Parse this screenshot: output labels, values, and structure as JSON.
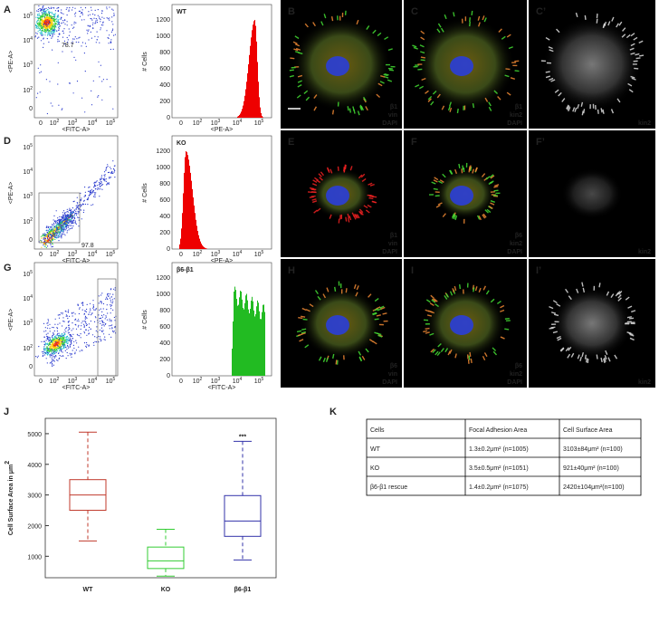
{
  "flow_rows": [
    {
      "dot": {
        "label": "A",
        "gate": "78.7"
      },
      "hist": {
        "name": "WT",
        "x_label": "<PE-A>"
      }
    },
    {
      "dot": {
        "label": "D",
        "gate": "97.8"
      },
      "hist": {
        "name": "KO",
        "x_label": "<PE-A>"
      }
    },
    {
      "dot": {
        "label": "G"
      },
      "hist": {
        "name": "β6-β1",
        "x_label": "<FITC-A>"
      }
    }
  ],
  "axes": {
    "x_label": "<FITC-A>",
    "y_label": "<PE-A>",
    "hist_y_label": "# Cells",
    "log_ticks": [
      {
        "label": "0"
      },
      {
        "label": "10",
        "sup": "2"
      },
      {
        "label": "10",
        "sup": "3"
      },
      {
        "label": "10",
        "sup": "4"
      },
      {
        "label": "10",
        "sup": "5"
      }
    ],
    "hist_yticks": [
      "0",
      "200",
      "400",
      "600",
      "800",
      "1000",
      "1200"
    ]
  },
  "micro": [
    {
      "label": "B",
      "channels": [
        {
          "text": "β1",
          "color": "#3c3"
        },
        {
          "text": "vin",
          "color": "#e22"
        },
        {
          "text": "DAPI",
          "color": "#36f"
        }
      ]
    },
    {
      "label": "C",
      "channels": [
        {
          "text": "β1",
          "color": "#3c3"
        },
        {
          "text": "kin2",
          "color": "#e22"
        },
        {
          "text": "DAPI",
          "color": "#36f"
        }
      ]
    },
    {
      "label": "C’",
      "channels": [
        {
          "text": "kin2",
          "color": "#fff"
        }
      ]
    },
    {
      "label": "E",
      "channels": [
        {
          "text": "β1",
          "color": "#3c3"
        },
        {
          "text": "vin",
          "color": "#e22"
        },
        {
          "text": "DAPI",
          "color": "#36f"
        }
      ]
    },
    {
      "label": "F",
      "channels": [
        {
          "text": "β6",
          "color": "#3c3"
        },
        {
          "text": "kin2",
          "color": "#e22"
        },
        {
          "text": "DAPI",
          "color": "#36f"
        }
      ]
    },
    {
      "label": "F’",
      "channels": [
        {
          "text": "kin2",
          "color": "#fff"
        }
      ]
    },
    {
      "label": "H",
      "channels": [
        {
          "text": "β6",
          "color": "#3c3"
        },
        {
          "text": "vin",
          "color": "#e22"
        },
        {
          "text": "DAPI",
          "color": "#36f"
        }
      ]
    },
    {
      "label": "I",
      "channels": [
        {
          "text": "β6",
          "color": "#3c3"
        },
        {
          "text": "kin2",
          "color": "#e22"
        },
        {
          "text": "DAPI",
          "color": "#36f"
        }
      ]
    },
    {
      "label": "I’",
      "channels": [
        {
          "text": "kin2",
          "color": "#fff"
        }
      ]
    }
  ],
  "box_plot": {
    "label": "J",
    "ylabel": "Cell Surface Area in μm",
    "ylabel_sup": "2",
    "ylim": [
      300,
      5500
    ],
    "yticks": [
      1000,
      2000,
      3000,
      4000,
      5000
    ],
    "annotation": "***",
    "groups": [
      {
        "name": "WT",
        "color": "#c0392b",
        "whisker_low": 1500,
        "q1": 2500,
        "median": 3000,
        "q3": 3500,
        "whisker_high": 5050
      },
      {
        "name": "KO",
        "color": "#3c3",
        "whisker_low": 350,
        "q1": 600,
        "median": 850,
        "q3": 1300,
        "whisker_high": 1880
      },
      {
        "name": "β6-β1",
        "color": "#33a",
        "whisker_low": 880,
        "q1": 1650,
        "median": 2150,
        "q3": 2980,
        "whisker_high": 4750
      }
    ]
  },
  "table": {
    "label": "K",
    "header": [
      "Cells",
      "Focal Adhesion Area",
      "Cell Surface Area"
    ],
    "rows": [
      [
        "WT",
        "1.3±0.2μm² (n=1005)",
        "3103±84μm²   (n=100)"
      ],
      [
        "KO",
        "3.5±0.5μm² (n=1051)",
        "921±40μm²   (n=100)"
      ],
      [
        "β6-β1 rescue",
        "1.4±0.2μm² (n=1075)",
        "2420±104μm²(n=100)"
      ]
    ]
  }
}
